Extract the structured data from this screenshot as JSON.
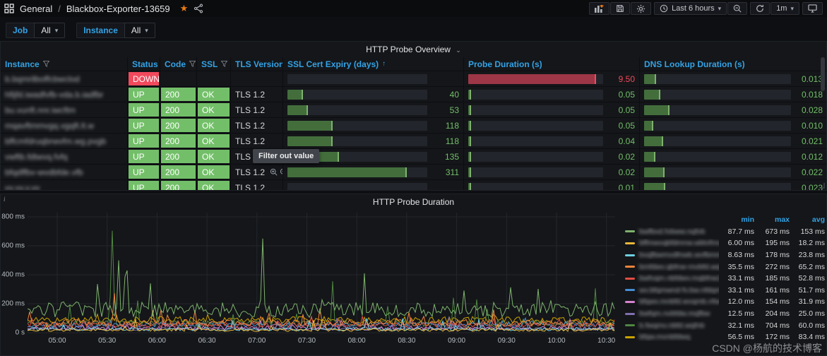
{
  "nav": {
    "folder": "General",
    "separator": "/",
    "title": "Blackbox-Exporter-13659",
    "time_range": "Last 6 hours",
    "refresh_interval": "1m"
  },
  "variables": [
    {
      "label": "Job",
      "value": "All"
    },
    {
      "label": "Instance",
      "value": "All"
    }
  ],
  "table_panel": {
    "title": "HTTP Probe Overview",
    "columns": [
      {
        "label": "Instance",
        "filter": true
      },
      {
        "label": "Status",
        "filter": true
      },
      {
        "label": "Code",
        "filter": true
      },
      {
        "label": "SSL",
        "filter": true
      },
      {
        "label": "TLS Version",
        "filter": true
      },
      {
        "label": "SSL Cert Expiry (days)",
        "filter": false,
        "sort": "asc"
      },
      {
        "label": "Probe Duration (s)",
        "filter": false
      },
      {
        "label": "DNS Lookup Duration (s)",
        "filter": false
      }
    ],
    "gauge_max": {
      "cert": 365,
      "probe": 10,
      "dns": 0.16
    },
    "tooltip": {
      "text": "Filter out value"
    },
    "rows": [
      {
        "instance_masked": "b.bqmrilboffcbwclod",
        "status": "DOWN",
        "code": "",
        "ssl": "",
        "tls": "",
        "cert": null,
        "cert_text": "",
        "probe": 9.5,
        "probe_text": "9.50",
        "probe_state": "down",
        "dns": 0.013,
        "dns_text": "0.013"
      },
      {
        "instance_masked": "hfijfd.iwadfvfb-vda.b.iadfbr",
        "status": "UP",
        "code": "200",
        "ssl": "OK",
        "tls": "TLS 1.2",
        "cert": 40,
        "cert_text": "40",
        "probe": 0.05,
        "probe_text": "0.05",
        "probe_state": "up",
        "dns": 0.018,
        "dns_text": "0.018"
      },
      {
        "instance_masked": "bu.vunft.nnr.iwcftm",
        "status": "UP",
        "code": "200",
        "ssl": "OK",
        "tls": "TLS 1.2",
        "cert": 53,
        "cert_text": "53",
        "probe": 0.05,
        "probe_text": "0.05",
        "probe_state": "up",
        "dns": 0.028,
        "dns_text": "0.028"
      },
      {
        "instance_masked": "mqavftmmvgq.vgqft.lt.w",
        "status": "UP",
        "code": "200",
        "ssl": "OK",
        "tls": "TLS 1.2",
        "cert": 118,
        "cert_text": "118",
        "probe": 0.05,
        "probe_text": "0.05",
        "probe_state": "up",
        "dns": 0.01,
        "dns_text": "0.010"
      },
      {
        "instance_masked": "bffcmfdruqbrwvfm.wg.pvgb",
        "status": "UP",
        "code": "200",
        "ssl": "OK",
        "tls": "TLS 1.2",
        "cert": 118,
        "cert_text": "118",
        "probe": 0.04,
        "probe_text": "0.04",
        "probe_state": "up",
        "dns": 0.021,
        "dns_text": "0.021"
      },
      {
        "instance_masked": "vwftb.fdtwvq.fvfq",
        "status": "UP",
        "code": "200",
        "ssl": "OK",
        "tls": "TLS 1.",
        "cert": 135,
        "cert_text": "135",
        "probe": 0.02,
        "probe_text": "0.02",
        "probe_state": "up",
        "dns": 0.012,
        "dns_text": "0.012"
      },
      {
        "instance_masked": "bfqdffbv-wvdbfde.vfb",
        "status": "UP",
        "code": "200",
        "ssl": "OK",
        "tls": "TLS 1.2",
        "hover_icons": true,
        "cert": 311,
        "cert_text": "311",
        "probe": 0.02,
        "probe_text": "0.02",
        "probe_state": "up",
        "dns": 0.022,
        "dns_text": "0.022"
      },
      {
        "instance_masked": "vv.vv.v.vv",
        "status": "UP",
        "code": "200",
        "ssl": "OK",
        "tls": "TLS 1.2",
        "cert": null,
        "cert_text": "",
        "probe": 0.01,
        "probe_text": "0.01",
        "probe_state": "up",
        "dns": 0.023,
        "dns_text": "0.023"
      }
    ]
  },
  "chart_panel": {
    "title": "HTTP Probe Duration",
    "legend_headers": [
      "min",
      "max",
      "avg"
    ]
  },
  "chart_data": {
    "type": "line",
    "title": "HTTP Probe Duration",
    "ylabel": "",
    "xlabel": "",
    "ylim": [
      0,
      800
    ],
    "y_ticks": [
      {
        "label": "0 s",
        "value": 0
      },
      {
        "label": "200 ms",
        "value": 200
      },
      {
        "label": "400 ms",
        "value": 400
      },
      {
        "label": "600 ms",
        "value": 600
      },
      {
        "label": "800 ms",
        "value": 800
      }
    ],
    "x_ticks": [
      "05:00",
      "05:30",
      "06:00",
      "06:30",
      "07:00",
      "07:30",
      "08:00",
      "08:30",
      "09:00",
      "09:30",
      "10:00",
      "10:30"
    ],
    "legend_position": "right",
    "grid": true,
    "series": [
      {
        "name_masked": "bwfbvd.fvbww.nqfvb",
        "color": "#7EB26D",
        "min": "87.7 ms",
        "max": "673 ms",
        "avg": "153 ms",
        "min_ms": 87.7,
        "max_ms": 673,
        "avg_ms": 153,
        "spikes": [
          [
            0.4,
            650
          ],
          [
            0.155,
            500
          ],
          [
            0.168,
            430
          ]
        ]
      },
      {
        "name_masked": "bffmwvqbfdmnw.wblvfmvdnvqfbw",
        "color": "#EAB839",
        "min": "6.00 ms",
        "max": "195 ms",
        "avg": "18.2 ms",
        "min_ms": 6.0,
        "max_ms": 195,
        "avg_ms": 18.2,
        "spikes": []
      },
      {
        "name_masked": "bvqfbwmvdfnwb.wvfbmm.nfdwvbfmbqnwfb",
        "color": "#6ED0E0",
        "min": "8.63 ms",
        "max": "178 ms",
        "avg": "23.8 ms",
        "min_ms": 8.63,
        "max_ms": 178,
        "avg_ms": 23.8,
        "spikes": []
      },
      {
        "name_masked": "bmfdwv.qbfnw-mvbfd.wqfb",
        "color": "#EF843C",
        "min": "35.5 ms",
        "max": "272 ms",
        "avg": "65.2 ms",
        "min_ms": 35.5,
        "max_ms": 272,
        "avg_ms": 65.2,
        "spikes": [
          [
            0.148,
            272
          ]
        ]
      },
      {
        "name_masked": "bwfvqm.nbfdwv.mqbfnw2",
        "color": "#E24D42",
        "min": "33.1 ms",
        "max": "185 ms",
        "avg": "52.8 ms",
        "min_ms": 33.1,
        "max_ms": 185,
        "avg_ms": 52.8,
        "spikes": []
      },
      {
        "name_masked": "wv.bfqmwnd-fv.bw.nfdqmbv.wf",
        "color": "#448FD6",
        "min": "33.1 ms",
        "max": "161 ms",
        "avg": "51.7 ms",
        "min_ms": 33.1,
        "max_ms": 161,
        "avg_ms": 51.7,
        "spikes": []
      },
      {
        "name_masked": "bfqwv.mnbfd.wvqmb.nfwvb",
        "color": "#D683CE",
        "min": "12.0 ms",
        "max": "154 ms",
        "avg": "31.9 ms",
        "min_ms": 12.0,
        "max_ms": 154,
        "avg_ms": 31.9,
        "spikes": []
      },
      {
        "name_masked": "bwfqm.nvbfdw.mqfbw",
        "color": "#806EB1",
        "min": "12.5 ms",
        "max": "204 ms",
        "avg": "25.0 ms",
        "min_ms": 12.5,
        "max_ms": 204,
        "avg_ms": 25.0,
        "spikes": []
      },
      {
        "name_masked": "b.fwqmv.nbfd.wqfnb",
        "color": "#508642",
        "min": "32.1 ms",
        "max": "704 ms",
        "avg": "60.0 ms",
        "min_ms": 32.1,
        "max_ms": 704,
        "avg_ms": 60.0,
        "spikes": [
          [
            0.146,
            704
          ]
        ]
      },
      {
        "name_masked": "bfqw.mvnbfdwq",
        "color": "#CCA300",
        "min": "56.5 ms",
        "max": "172 ms",
        "avg": "83.4 ms",
        "min_ms": 56.5,
        "max_ms": 172,
        "avg_ms": 83.4,
        "spikes": []
      }
    ]
  },
  "watermark": "CSDN @杨航的技术博客"
}
